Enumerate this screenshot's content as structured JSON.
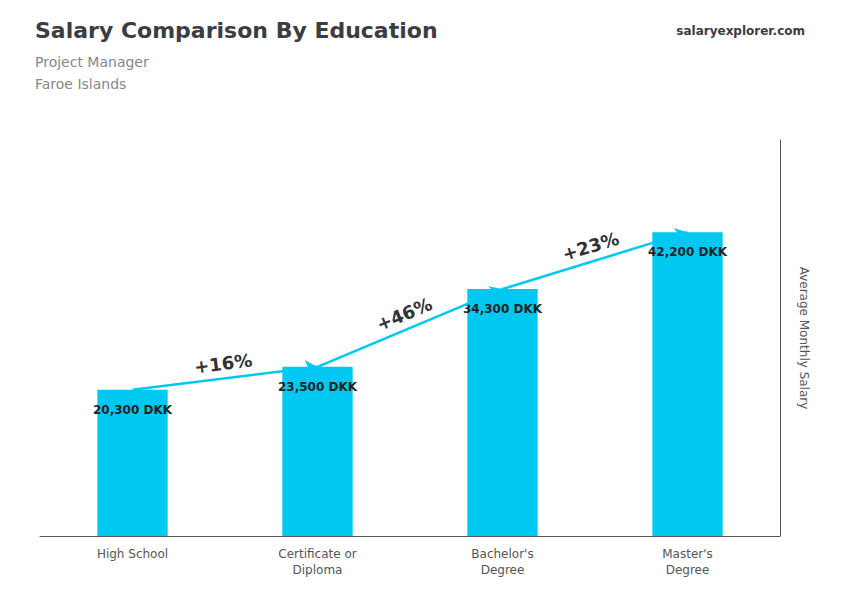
{
  "chart_data": {
    "type": "bar",
    "title": "Salary Comparison By Education",
    "subtitle": [
      "Project Manager",
      "Faroe Islands"
    ],
    "source": "salaryexplorer.com",
    "y_label": "Average Monthly Salary",
    "categories": [
      "High School",
      "Certificate or\nDiploma",
      "Bachelor's\nDegree",
      "Master's\nDegree"
    ],
    "values": [
      20300,
      23500,
      34300,
      42200
    ],
    "value_labels": [
      "20,300 DKK",
      "23,500 DKK",
      "34,300 DKK",
      "42,200 DKK"
    ],
    "data_labels": true,
    "annotations": [
      "+16%",
      "+46%",
      "+23%"
    ],
    "color": "#00c8f0",
    "ylim": [
      0,
      55000
    ],
    "yticks": [],
    "tick_labels": "x",
    "grid": false
  }
}
